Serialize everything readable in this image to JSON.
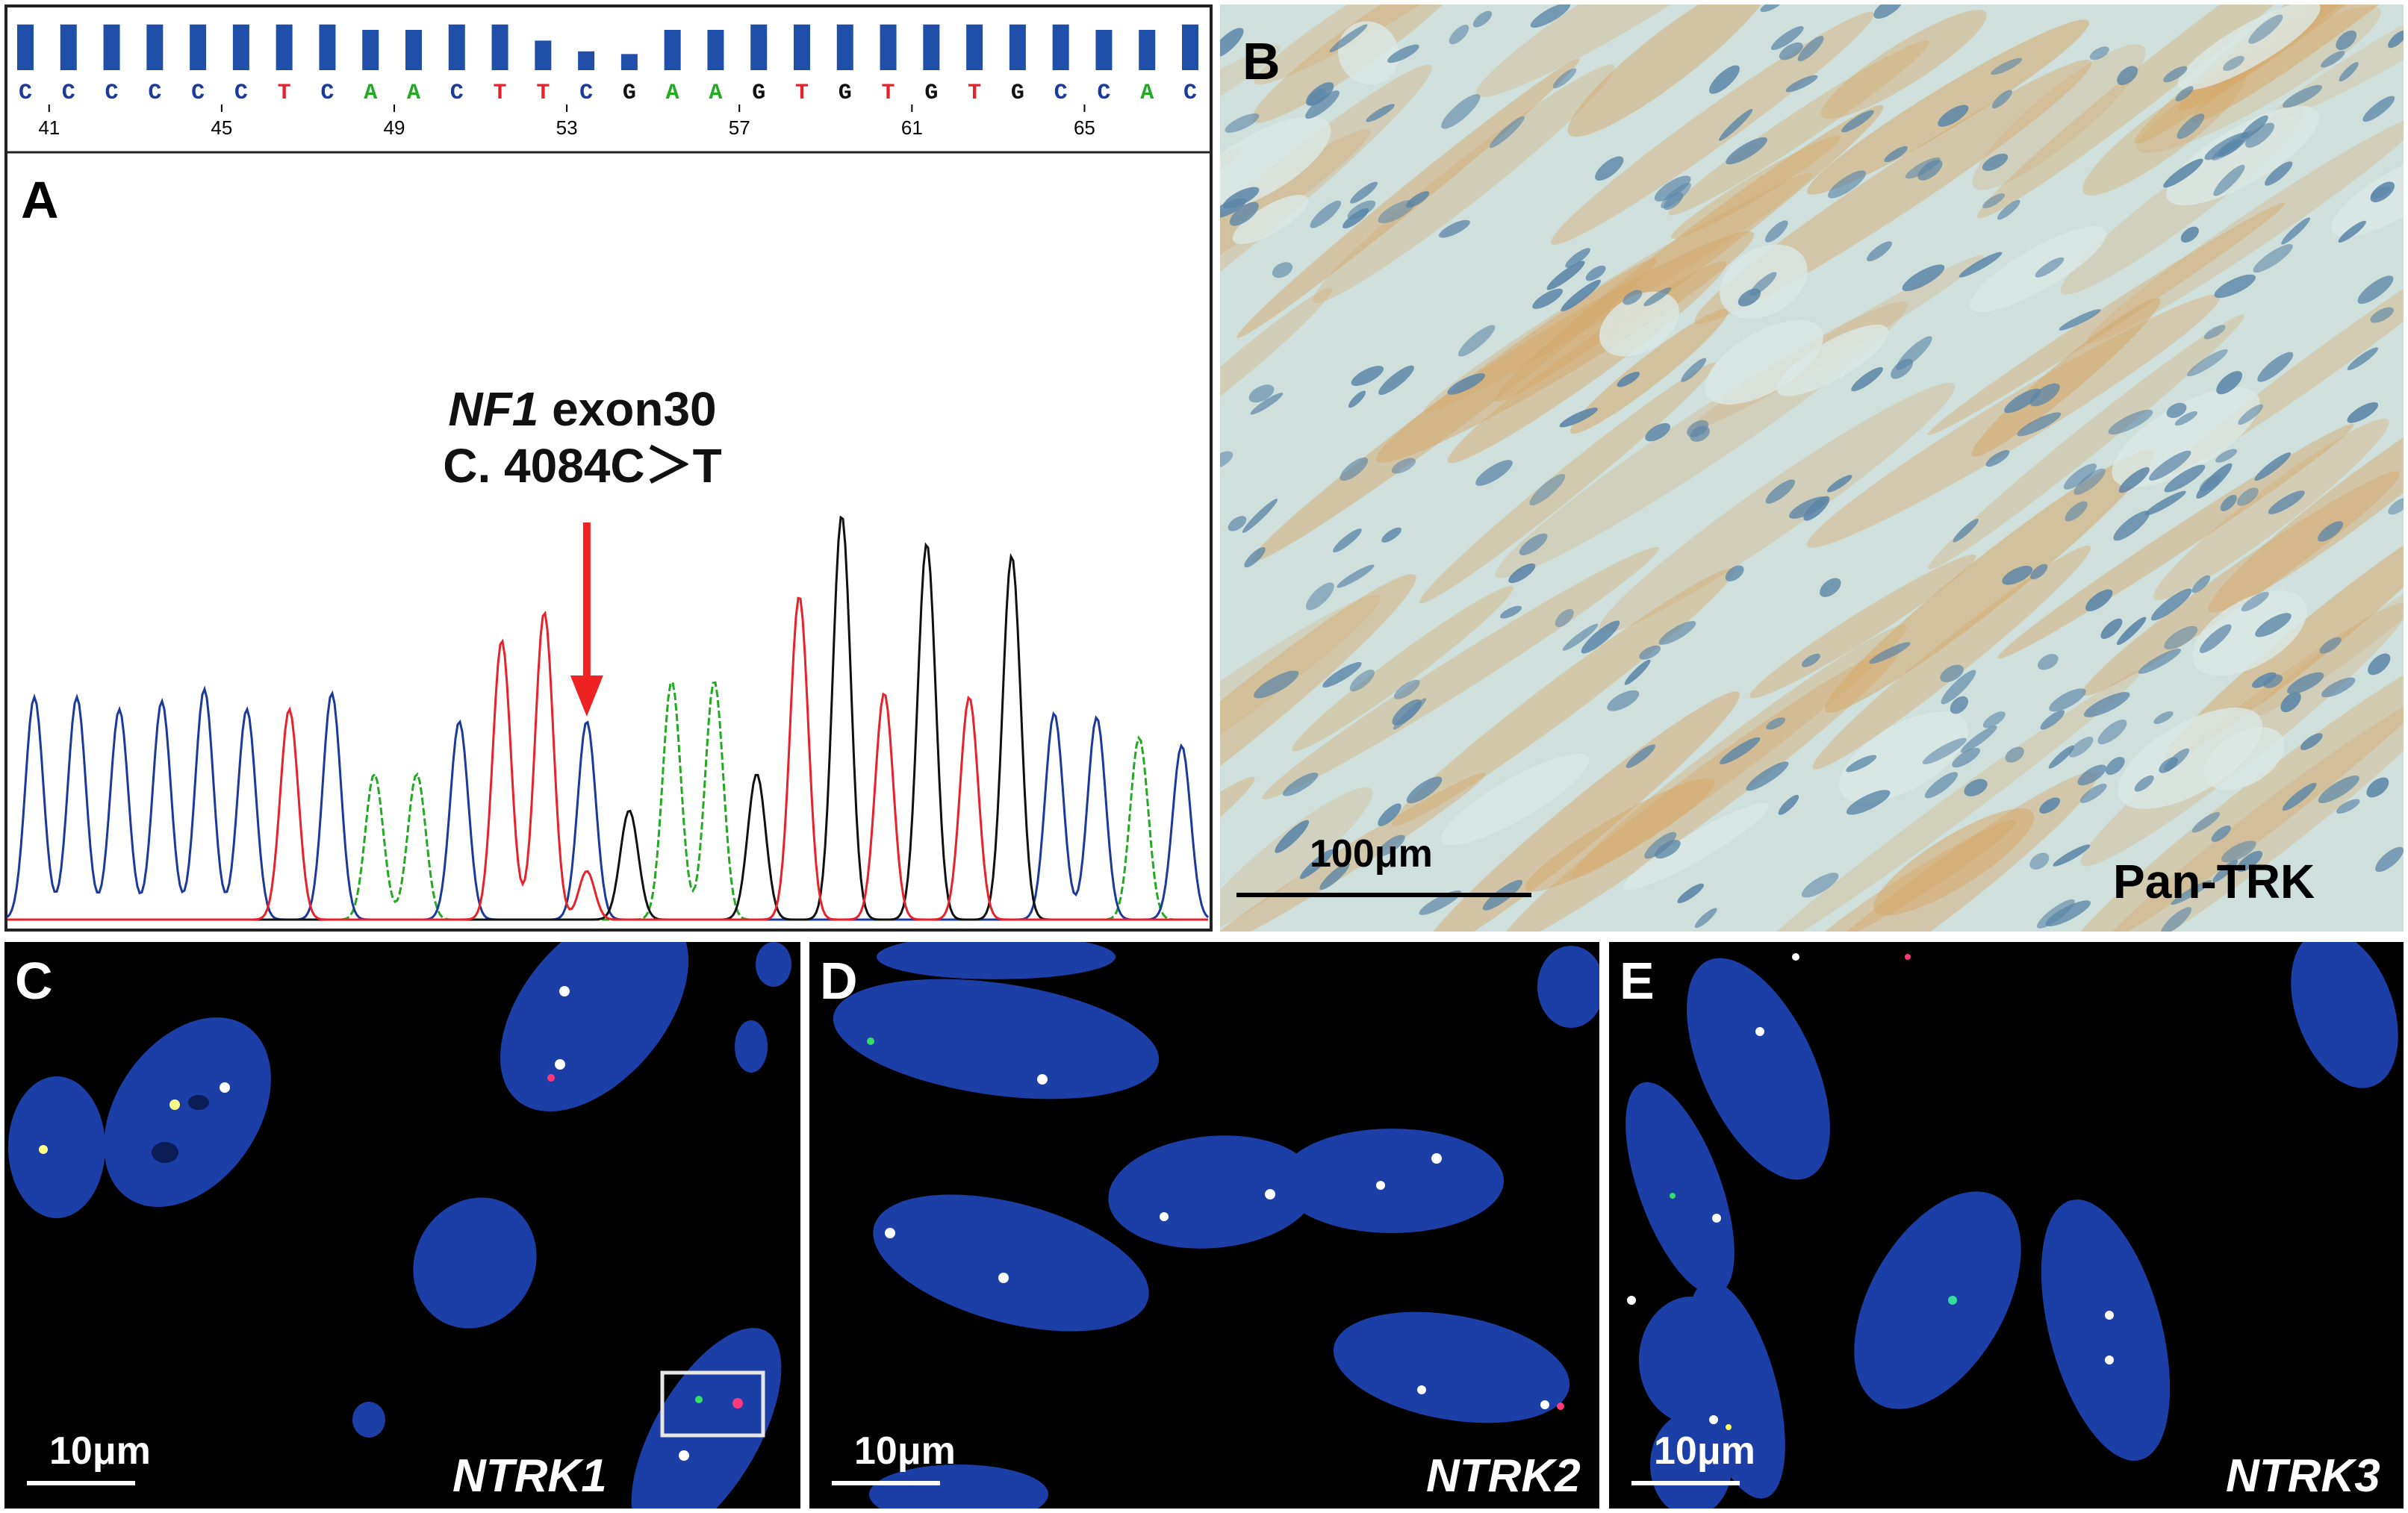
{
  "panel_a": {
    "letter": "A",
    "bases": [
      "C",
      "C",
      "C",
      "C",
      "C",
      "C",
      "T",
      "C",
      "A",
      "A",
      "C",
      "T",
      "T",
      "C",
      "G",
      "A",
      "A",
      "G",
      "T",
      "G",
      "T",
      "G",
      "T",
      "G",
      "C",
      "C",
      "A",
      "C"
    ],
    "base_heights": [
      0.85,
      0.85,
      0.85,
      0.85,
      0.85,
      0.85,
      0.85,
      0.85,
      0.75,
      0.75,
      0.85,
      0.85,
      0.55,
      0.35,
      0.3,
      0.75,
      0.75,
      0.85,
      0.85,
      0.85,
      0.85,
      0.85,
      0.85,
      0.85,
      0.85,
      0.75,
      0.75,
      0.85
    ],
    "position_labels": [
      "41",
      "45",
      "49",
      "53",
      "57",
      "61",
      "65"
    ],
    "label_line1_gene": "NF1",
    "label_line1_rest": " exon30",
    "label_line2": "C. 4084C＞T",
    "colors": {
      "A": "#22aa22",
      "C": "#1a3a9c",
      "G": "#111111",
      "T": "#e8212b",
      "arrow": "#ee2222",
      "bars": "#1f4fa8"
    },
    "peak_heights": [
      0.55,
      0.55,
      0.52,
      0.54,
      0.57,
      0.52,
      0.52,
      0.56,
      0.36,
      0.36,
      0.49,
      0.69,
      0.76,
      0.49,
      0.27,
      0.59,
      0.59,
      0.36,
      0.8,
      1.0,
      0.56,
      0.93,
      0.55,
      0.9,
      0.51,
      0.5,
      0.45,
      0.43
    ]
  },
  "panel_b": {
    "letter": "B",
    "scale_label": "100μm",
    "stain_label": "Pan-TRK"
  },
  "panel_c": {
    "letter": "C",
    "scale_label": "10μm",
    "gene_label": "NTRK1"
  },
  "panel_d": {
    "letter": "D",
    "scale_label": "10μm",
    "gene_label": "NTRK2"
  },
  "panel_e": {
    "letter": "E",
    "scale_label": "10μm",
    "gene_label": "NTRK3"
  }
}
